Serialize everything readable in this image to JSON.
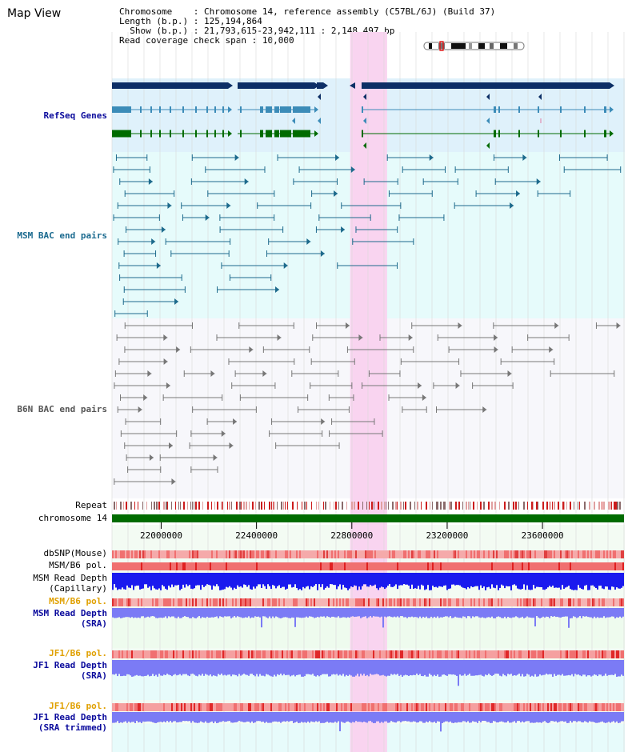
{
  "page": {
    "title": "Map View"
  },
  "info": {
    "chromosome_label": "Chromosome",
    "chromosome_value": "Chromosome 14, reference assembly (C57BL/6J) (Build 37)",
    "length_label": "Length (b.p.)",
    "length_value": "125,194,864",
    "show_label": "Show (b.p.)",
    "show_value": "21,793,615-23,942,111 : 2,148,497 bp",
    "coverage_label": "Read coverage check span",
    "coverage_value": "10,000"
  },
  "tracks": {
    "refseq": "RefSeq Genes",
    "msm_bac": "MSM BAC end pairs",
    "b6n_bac": "B6N BAC end pairs",
    "repeat": "Repeat",
    "chromosome": "chromosome 14",
    "dbsnp": "dbSNP(Mouse)",
    "msm_b6_pol_1": "MSM/B6 pol.",
    "msm_depth_cap_1": "MSM Read Depth",
    "msm_depth_cap_2": "(Capillary)",
    "msm_b6_pol_2": "MSM/B6 pol.",
    "msm_depth_sra_1": "MSM Read Depth",
    "msm_depth_sra_2": "(SRA)",
    "jf1_b6_pol_1": "JF1/B6 pol.",
    "jf1_depth_sra_1": "JF1 Read Depth",
    "jf1_depth_sra_2": "(SRA)",
    "jf1_b6_pol_2": "JF1/B6 pol.",
    "jf1_depth_trim_1": "JF1 Read Depth",
    "jf1_depth_trim_2": "(SRA trimmed)"
  },
  "axis": {
    "ticks": [
      "22000000",
      "22400000",
      "22800000",
      "23200000",
      "23600000"
    ],
    "tick_values": [
      22000000,
      22400000,
      22800000,
      23200000,
      23600000
    ],
    "range": [
      21793615,
      23942111
    ]
  },
  "highlight": {
    "start": 22793000,
    "end": 22948000
  },
  "colors": {
    "refseq_bg": "#dff1fb",
    "msm_bg": "#e6fbfb",
    "b6n_bg": "#f7f7fb",
    "highlight": "#f9d4f0",
    "gene_dark": "#0d2f66",
    "gene_teal": "#3c8cb8",
    "gene_green": "#006b00",
    "msm_bac": "#1d6a8c",
    "b6n_bac": "#777777",
    "depth_blue": "#0000ee",
    "depth_light": "#7b7bf5",
    "label_blue": "#0a0a9c",
    "label_orange": "#e0a000",
    "label_teal": "#1b6a8f"
  }
}
